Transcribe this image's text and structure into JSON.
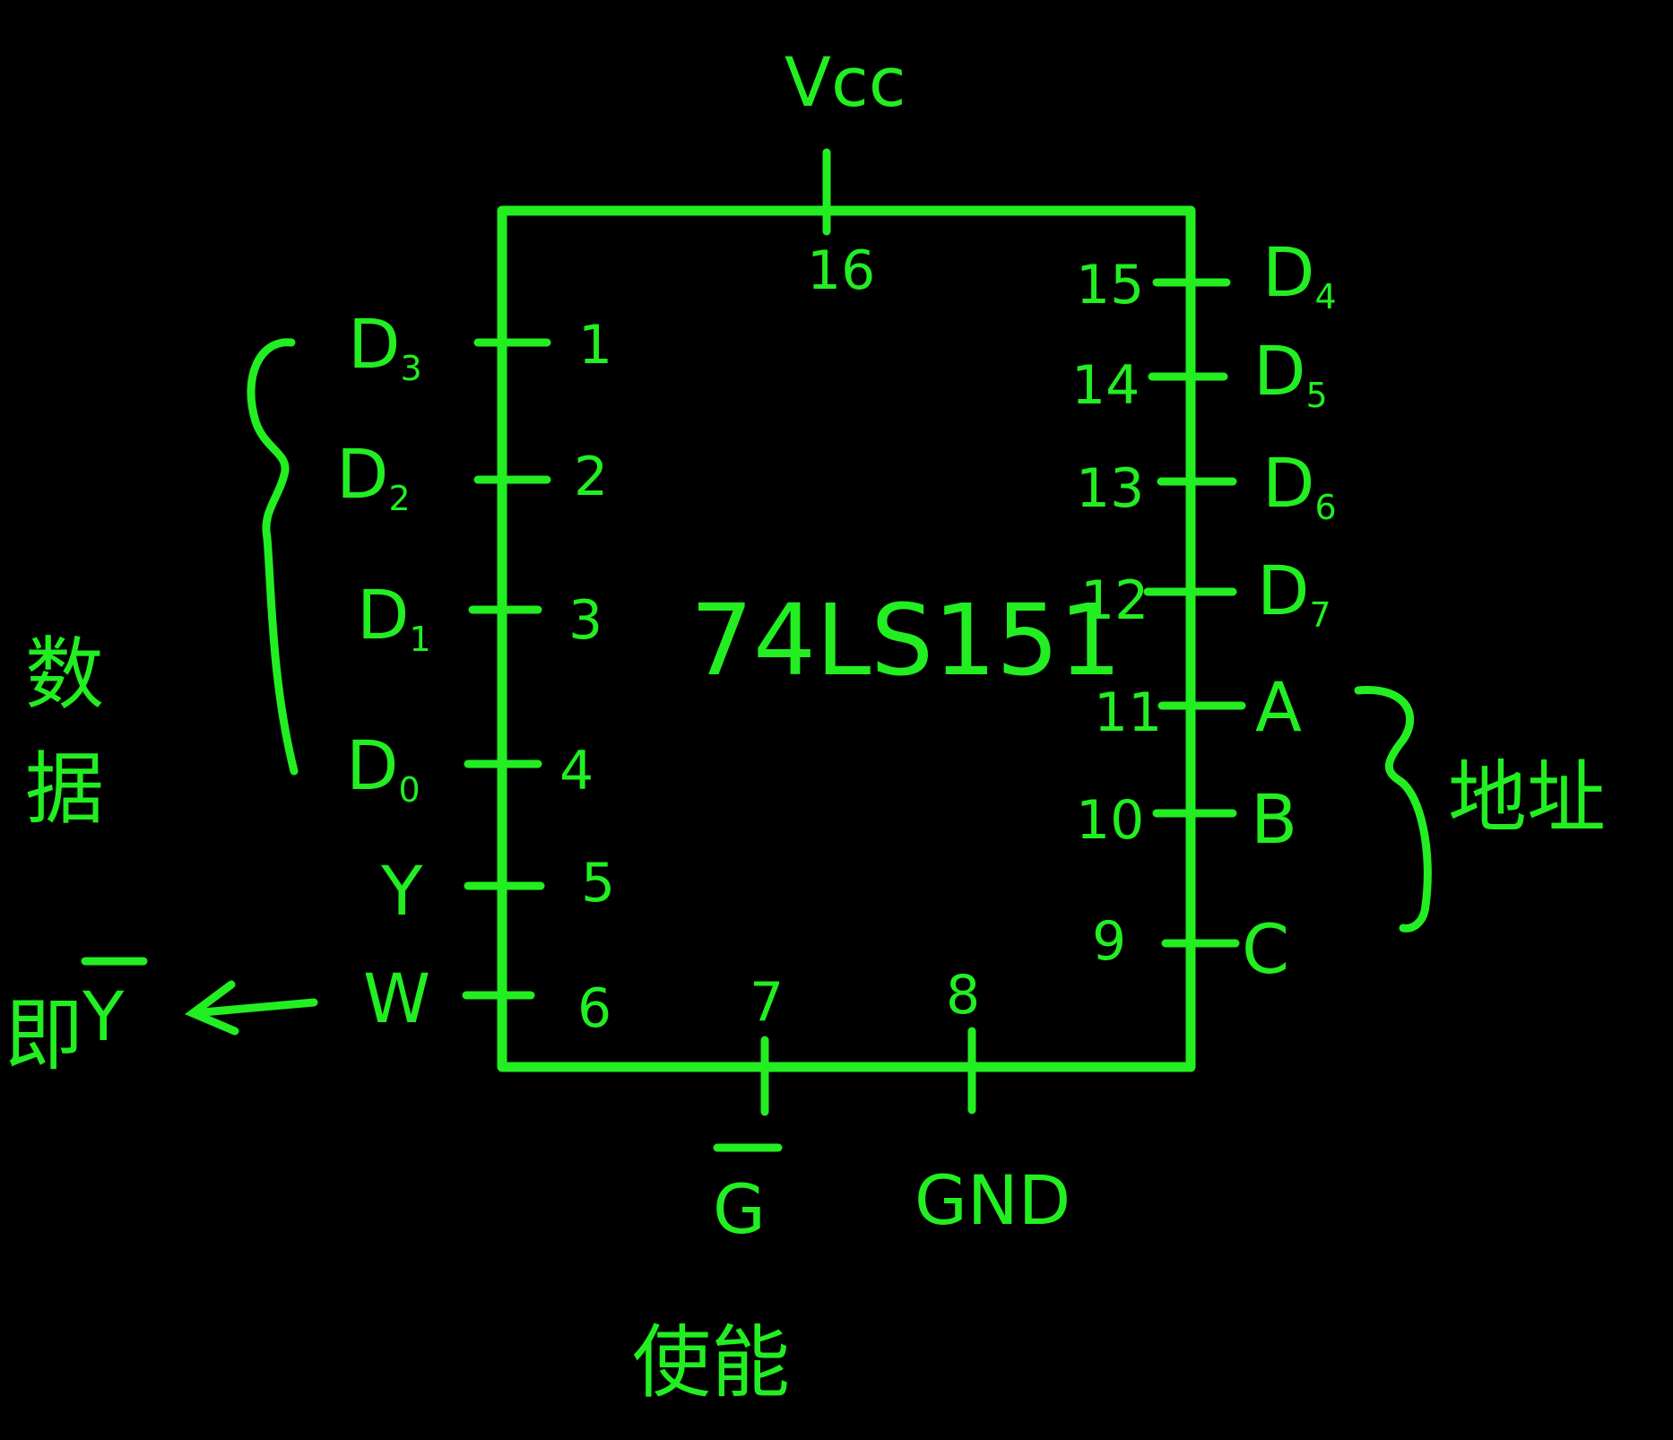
{
  "chip": {
    "name": "74LS151",
    "vcc": {
      "label": "Vcc",
      "pin": "16"
    },
    "left_pins": [
      {
        "pin": "1",
        "signal": "D",
        "sub": "3"
      },
      {
        "pin": "2",
        "signal": "D",
        "sub": "2"
      },
      {
        "pin": "3",
        "signal": "D",
        "sub": "1"
      },
      {
        "pin": "4",
        "signal": "D",
        "sub": "0"
      },
      {
        "pin": "5",
        "signal": "Y",
        "sub": ""
      },
      {
        "pin": "6",
        "signal": "W",
        "sub": ""
      }
    ],
    "right_pins": [
      {
        "pin": "15",
        "signal": "D",
        "sub": "4"
      },
      {
        "pin": "14",
        "signal": "D",
        "sub": "5"
      },
      {
        "pin": "13",
        "signal": "D",
        "sub": "6"
      },
      {
        "pin": "12",
        "signal": "D",
        "sub": "7"
      },
      {
        "pin": "11",
        "signal": "A",
        "sub": ""
      },
      {
        "pin": "10",
        "signal": "B",
        "sub": ""
      },
      {
        "pin": "9",
        "signal": "C",
        "sub": ""
      }
    ],
    "bottom_pins": [
      {
        "pin": "7",
        "signal": "G"
      },
      {
        "pin": "8",
        "signal": "GND"
      }
    ]
  },
  "annotations": {
    "data_group": "数据",
    "address_group": "地址",
    "enable": "使能",
    "w_note_prefix": "即",
    "w_note_signal": "Y"
  },
  "colors": {
    "ink": "#22ee22",
    "background": "#000000"
  }
}
